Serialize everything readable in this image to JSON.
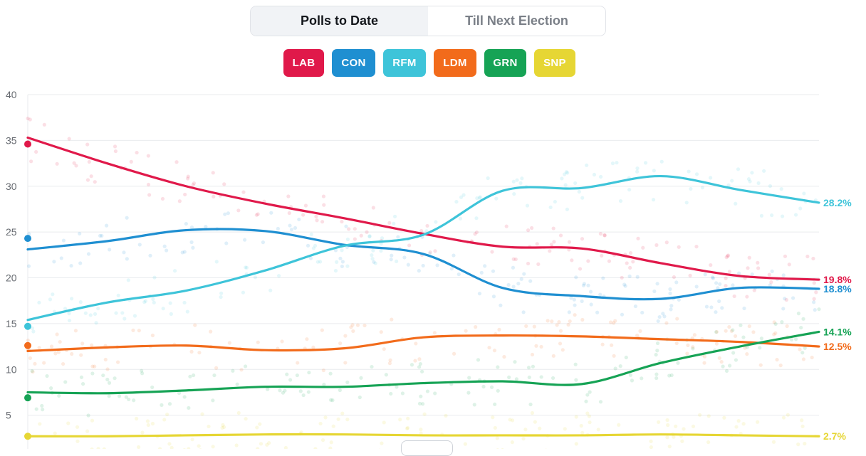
{
  "tabs": [
    {
      "label": "Polls to Date",
      "active": true
    },
    {
      "label": "Till Next Election",
      "active": false
    }
  ],
  "parties": [
    {
      "code": "LAB",
      "color": "#e0194a"
    },
    {
      "code": "CON",
      "color": "#1f8fd1"
    },
    {
      "code": "RFM",
      "color": "#3ec4d9"
    },
    {
      "code": "LDM",
      "color": "#f26b1b"
    },
    {
      "code": "GRN",
      "color": "#16a355"
    },
    {
      "code": "SNP",
      "color": "#e6d634"
    }
  ],
  "chart_data": {
    "type": "line",
    "title": "",
    "xlabel": "",
    "ylabel": "",
    "ylim": [
      2.5,
      40
    ],
    "yticks": [
      5,
      10,
      15,
      20,
      25,
      30,
      35,
      40
    ],
    "x": [
      0,
      0.1,
      0.2,
      0.3,
      0.4,
      0.5,
      0.6,
      0.7,
      0.8,
      0.9,
      1.0
    ],
    "series": [
      {
        "name": "LAB",
        "color": "#e0194a",
        "start_point": 34.6,
        "end_label": "19.8%",
        "values": [
          35.3,
          32.5,
          30.0,
          28.1,
          26.5,
          24.8,
          23.4,
          23.2,
          21.6,
          20.2,
          19.8
        ]
      },
      {
        "name": "CON",
        "color": "#1f8fd1",
        "start_point": 24.3,
        "end_label": "18.8%",
        "values": [
          23.1,
          24.0,
          25.2,
          25.1,
          23.6,
          22.6,
          18.9,
          18.0,
          17.7,
          18.9,
          18.8
        ]
      },
      {
        "name": "RFM",
        "color": "#3ec4d9",
        "start_point": 14.7,
        "end_label": "28.2%",
        "values": [
          15.4,
          17.3,
          18.6,
          20.8,
          23.5,
          24.7,
          29.5,
          29.8,
          31.1,
          29.6,
          28.2
        ]
      },
      {
        "name": "LDM",
        "color": "#f26b1b",
        "start_point": 12.6,
        "end_label": "12.5%",
        "values": [
          12.0,
          12.4,
          12.6,
          12.1,
          12.3,
          13.5,
          13.7,
          13.6,
          13.3,
          13.0,
          12.5
        ]
      },
      {
        "name": "GRN",
        "color": "#16a355",
        "start_point": 6.9,
        "end_label": "14.1%",
        "values": [
          7.5,
          7.4,
          7.7,
          8.1,
          8.1,
          8.5,
          8.7,
          8.4,
          10.7,
          12.5,
          14.1
        ]
      },
      {
        "name": "SNP",
        "color": "#e6d634",
        "start_point": 2.7,
        "end_label": "2.7%",
        "values": [
          2.7,
          2.7,
          2.8,
          2.9,
          2.9,
          2.8,
          2.8,
          2.8,
          2.9,
          2.8,
          2.7
        ]
      }
    ]
  }
}
